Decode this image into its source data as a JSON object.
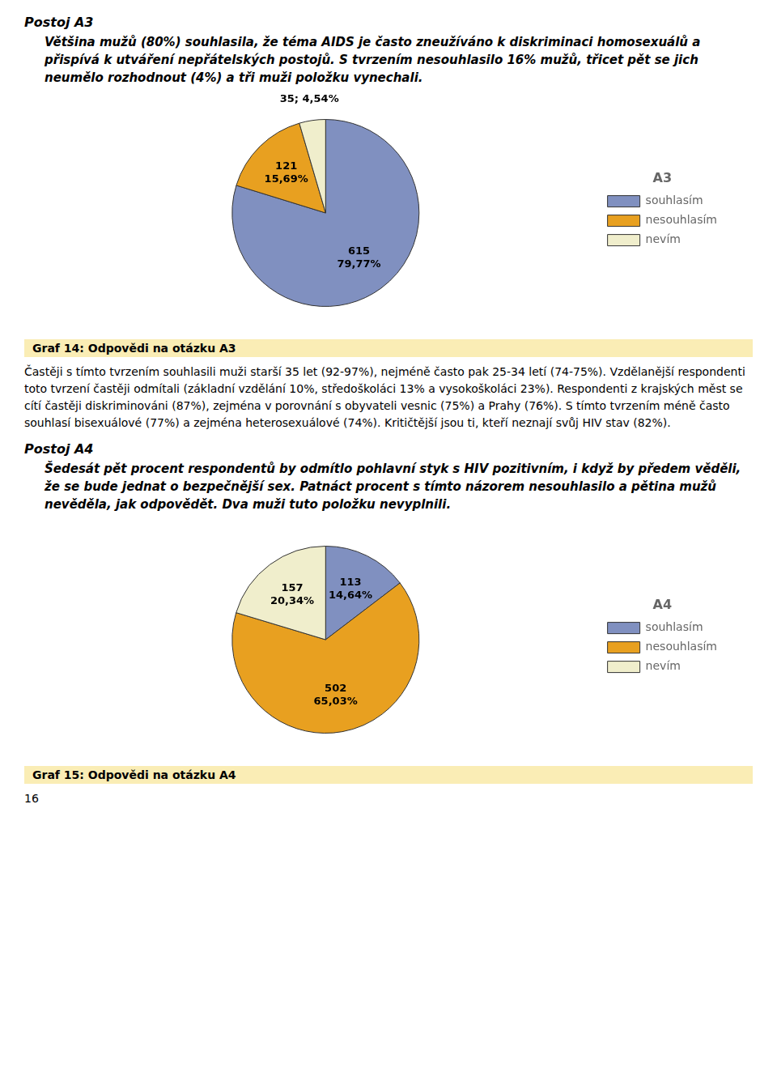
{
  "chart_data": [
    {
      "type": "pie",
      "title": "Postoj A3",
      "subtitle": "Většina mužů (80%) souhlasila, že téma AIDS je často zneužíváno k diskriminaci homosexuálů a přispívá k utváření nepřátelských postojů. S tvrzením nesouhlasilo 16% mužů, třicet pět se jich neumělo rozhodnout (4%) a tři muži položku vynechali.",
      "legend_title": "A3",
      "categories": [
        "souhlasím",
        "nesouhlasím",
        "nevím"
      ],
      "values": [
        615,
        121,
        35
      ],
      "value_labels": [
        "615\n79,77%",
        "121\n15,69%",
        "35; 4,54%"
      ],
      "colors": [
        "#8090c0",
        "#e8a020",
        "#f0eecc"
      ],
      "data_labels": true,
      "legend": "right",
      "annotations": [
        "Graf 14: Odpovědi na otázku A3",
        "Častěji s tímto tvrzením souhlasili muži starší 35 let (92-97%), nejméně často pak 25-34 letí (74-75%). Vzdělanější respondenti toto tvrzení častěji odmítali (základní vzdělání 10%, středoškoláci 13% a vysokoškoláci 23%). Respondenti z krajských měst se cítí častěji diskriminováni (87%), zejména v porovnání s obyvateli vesnic (75%) a Prahy (76%). S tímto tvrzením méně často souhlasí bisexuálové (77%) a zejména heterosexuálové (74%). Kritičtější jsou ti, kteří neznají svůj HIV stav (82%)."
      ]
    },
    {
      "type": "pie",
      "title": "Postoj A4",
      "subtitle": "Šedesát pět procent respondentů by odmítlo pohlavní styk s HIV pozitivním, i když by předem věděli, že se bude jednat o bezpečnější sex. Patnáct procent s tímto názorem nesouhlasilo a pětina mužů nevěděla, jak odpovědět. Dva muži tuto položku nevyplnili.",
      "legend_title": "A4",
      "categories": [
        "souhlasím",
        "nesouhlasím",
        "nevím"
      ],
      "values": [
        113,
        502,
        157
      ],
      "value_labels": [
        "113\n14,64%",
        "502\n65,03%",
        "157\n20,34%"
      ],
      "colors": [
        "#8090c0",
        "#e8a020",
        "#f0eecc"
      ],
      "data_labels": true,
      "legend": "right",
      "annotations": [
        "Graf 15: Odpovědi na otázku A4",
        "16"
      ]
    }
  ]
}
